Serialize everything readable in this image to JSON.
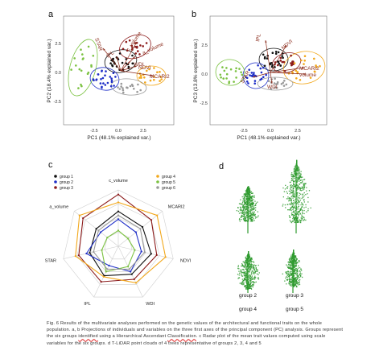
{
  "panels": {
    "a": "a",
    "b": "b",
    "c": "c",
    "d": "d"
  },
  "panel_a": {
    "xlabel": "PC1 (48.1% explained var.)",
    "ylabel": "PC2 (18.4% explained var.)",
    "xticks": [
      "-2.5",
      "0.0",
      "2.5"
    ],
    "yticks": [
      "2.5",
      "0.0",
      "-2.5"
    ],
    "vector_labels": [
      "STAR",
      "c_volume",
      "a_volume",
      "WDI",
      "IPL",
      "NDVI",
      "MCARI2"
    ]
  },
  "panel_b": {
    "xlabel": "PC1 (48.1% explained var.)",
    "ylabel": "PC3 (13.8% explained var.)",
    "xticks": [
      "-2.5",
      "0.0",
      "2.5"
    ],
    "yticks": [
      "2.5",
      "0.0",
      "-2.5"
    ],
    "vector_labels": [
      "IPL",
      "NDVI",
      "MCARI2",
      "volume",
      "STAR",
      "WDI"
    ]
  },
  "colors": {
    "group1": "#111111",
    "group2": "#1f2fc8",
    "group3": "#8b1a1a",
    "group4": "#f2a81c",
    "group5": "#7cc242",
    "group6": "#9a9a9a",
    "tree": "#2e9a2e"
  },
  "radar": {
    "legend": [
      "group 1",
      "group 2",
      "group 3",
      "group 4",
      "group 5",
      "group 6"
    ],
    "axes": [
      "c_volume",
      "MCARI2",
      "NDVI",
      "WDI",
      "IPL",
      "STAR",
      "a_volume"
    ],
    "series": [
      {
        "name": "group 1",
        "values": [
          0.62,
          0.55,
          0.6,
          0.55,
          0.58,
          0.52,
          0.5
        ]
      },
      {
        "name": "group 2",
        "values": [
          0.48,
          0.4,
          0.42,
          0.5,
          0.38,
          0.58,
          0.4
        ]
      },
      {
        "name": "group 3",
        "values": [
          0.92,
          0.75,
          0.7,
          0.65,
          0.7,
          0.72,
          0.8
        ]
      },
      {
        "name": "group 4",
        "values": [
          0.78,
          0.88,
          0.86,
          0.72,
          0.6,
          0.78,
          0.88
        ]
      },
      {
        "name": "group 5",
        "values": [
          0.28,
          0.22,
          0.3,
          0.4,
          0.5,
          0.3,
          0.25
        ]
      },
      {
        "name": "group 6",
        "values": [
          0.55,
          0.5,
          0.48,
          0.45,
          0.45,
          0.45,
          0.45
        ]
      }
    ]
  },
  "trees": {
    "labels": [
      "group 2",
      "group 3",
      "group 4",
      "group 5"
    ]
  },
  "caption": {
    "part1": "Fig. 6 Results of the multivariate analyses performed on the genetic values of the architectural and functional traits on the whole population. a, b Projections of individuals and variables on the three first axes of the principal component (PC) analysis. Groups represent the six groups ",
    "squig1": "identified",
    "part2": " using a Hierarchical Ascendant ",
    "squig2": "Classification",
    "part3": ". c Radar plot of the mean trait values computed using scale variables for the six groups. d T-LiDAR point clouds of 4 trees representative of groups 2, 3, 4 and 5"
  }
}
